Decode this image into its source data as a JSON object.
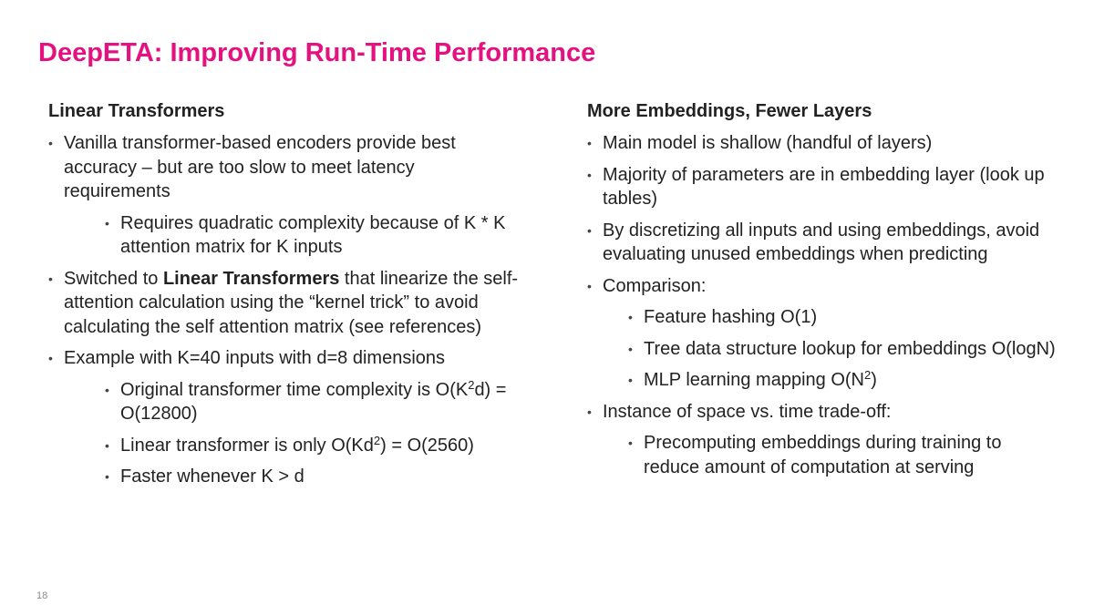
{
  "title": "DeepETA: Improving Run-Time Performance",
  "page_number": "18",
  "bullet_char": "•",
  "left": {
    "heading": "Linear Transformers",
    "b1": "Vanilla transformer-based encoders provide best accuracy – but are too slow to meet latency requirements",
    "b1_sub1": "Requires quadratic complexity because of K * K attention matrix for K inputs",
    "b2_pre": "Switched to ",
    "b2_bold": "Linear Transformers",
    "b2_post": " that linearize the self-attention calculation using the “kernel trick” to avoid calculating the self attention matrix (see references)",
    "b3": "Example with K=40 inputs with d=8 dimensions",
    "b3_sub1_pre": "Original transformer time complexity is O(K",
    "b3_sub1_sup": "2",
    "b3_sub1_post": "d) = O(12800)",
    "b3_sub2_pre": "Linear transformer is only O(Kd",
    "b3_sub2_sup": "2",
    "b3_sub2_post": ") = O(2560)",
    "b3_sub3": "Faster whenever K > d"
  },
  "right": {
    "heading": "More Embeddings, Fewer Layers",
    "b1": "Main model is shallow (handful of layers)",
    "b2": "Majority of parameters are in embedding layer (look up tables)",
    "b3": "By discretizing all inputs and using embeddings, avoid evaluating unused embeddings when predicting",
    "b4": "Comparison:",
    "b4_sub1": "Feature hashing O(1)",
    "b4_sub2": "Tree data structure lookup for embeddings O(logN)",
    "b4_sub3_pre": "MLP learning mapping O(N",
    "b4_sub3_sup": "2",
    "b4_sub3_post": ")",
    "b5": "Instance of space vs. time trade-off:",
    "b5_sub1": "Precomputing embeddings during training to reduce amount of computation at serving"
  }
}
